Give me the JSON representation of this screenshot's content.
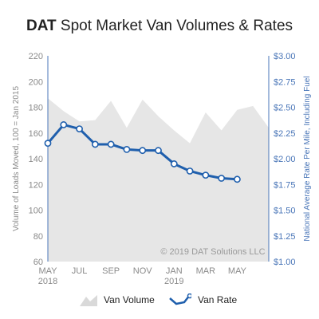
{
  "header": {
    "brand": "DAT",
    "title_rest": "Spot Market Van Volumes & Rates"
  },
  "chart_data": {
    "type": "area+line",
    "title": "DAT Spot Market Van Volumes & Rates",
    "x_ticks": [
      {
        "month": "MAY",
        "year": "2018"
      },
      {
        "month": "JUL",
        "year": ""
      },
      {
        "month": "SEP",
        "year": ""
      },
      {
        "month": "NOV",
        "year": ""
      },
      {
        "month": "JAN",
        "year": "2019"
      },
      {
        "month": "MAR",
        "year": ""
      },
      {
        "month": "MAY",
        "year": ""
      }
    ],
    "x_tick_positions": [
      0,
      2,
      4,
      6,
      8,
      10,
      12
    ],
    "left_axis": {
      "label": "Volume of Loads Moved, 100 = Jan 2015",
      "min": 60,
      "max": 220,
      "ticks": [
        "60",
        "80",
        "100",
        "120",
        "140",
        "160",
        "180",
        "200",
        "220"
      ],
      "tick_values": [
        60,
        80,
        100,
        120,
        140,
        160,
        180,
        200,
        220
      ]
    },
    "right_axis": {
      "label": "National Average Rate Per Mile, Including Fuel",
      "min": 1.0,
      "max": 3.0,
      "ticks": [
        "$1.00",
        "$1.25",
        "$1.50",
        "$1.75",
        "$2.00",
        "$2.25",
        "$2.50",
        "$2.75",
        "$3.00"
      ],
      "tick_values": [
        1.0,
        1.25,
        1.5,
        1.75,
        2.0,
        2.25,
        2.5,
        2.75,
        3.0
      ]
    },
    "series": [
      {
        "name": "Van Volume",
        "kind": "area",
        "axis": "left",
        "color": "#e6e6e6",
        "points": [
          [
            0,
            187
          ],
          [
            1,
            177
          ],
          [
            2,
            169
          ],
          [
            3,
            170
          ],
          [
            4,
            185
          ],
          [
            5,
            164
          ],
          [
            6,
            186
          ],
          [
            7,
            173
          ],
          [
            8,
            162
          ],
          [
            9,
            152
          ],
          [
            10,
            176
          ],
          [
            11,
            162
          ],
          [
            12,
            178
          ],
          [
            13,
            181
          ],
          [
            14,
            164
          ]
        ]
      },
      {
        "name": "Van Rate",
        "kind": "line",
        "axis": "right",
        "color": "#1f5fad",
        "points": [
          [
            0,
            2.15
          ],
          [
            1,
            2.33
          ],
          [
            2,
            2.29
          ],
          [
            3,
            2.14
          ],
          [
            4,
            2.14
          ],
          [
            5,
            2.09
          ],
          [
            6,
            2.08
          ],
          [
            7,
            2.08
          ],
          [
            8,
            1.95
          ],
          [
            9,
            1.88
          ],
          [
            10,
            1.84
          ],
          [
            11,
            1.81
          ],
          [
            12,
            1.8
          ]
        ]
      }
    ],
    "watermark": "© 2019 DAT Solutions LLC",
    "legend_position": "bottom",
    "grid": false,
    "colors": {
      "axis": "#4a76b8",
      "tick": "#8a8a8a"
    }
  }
}
